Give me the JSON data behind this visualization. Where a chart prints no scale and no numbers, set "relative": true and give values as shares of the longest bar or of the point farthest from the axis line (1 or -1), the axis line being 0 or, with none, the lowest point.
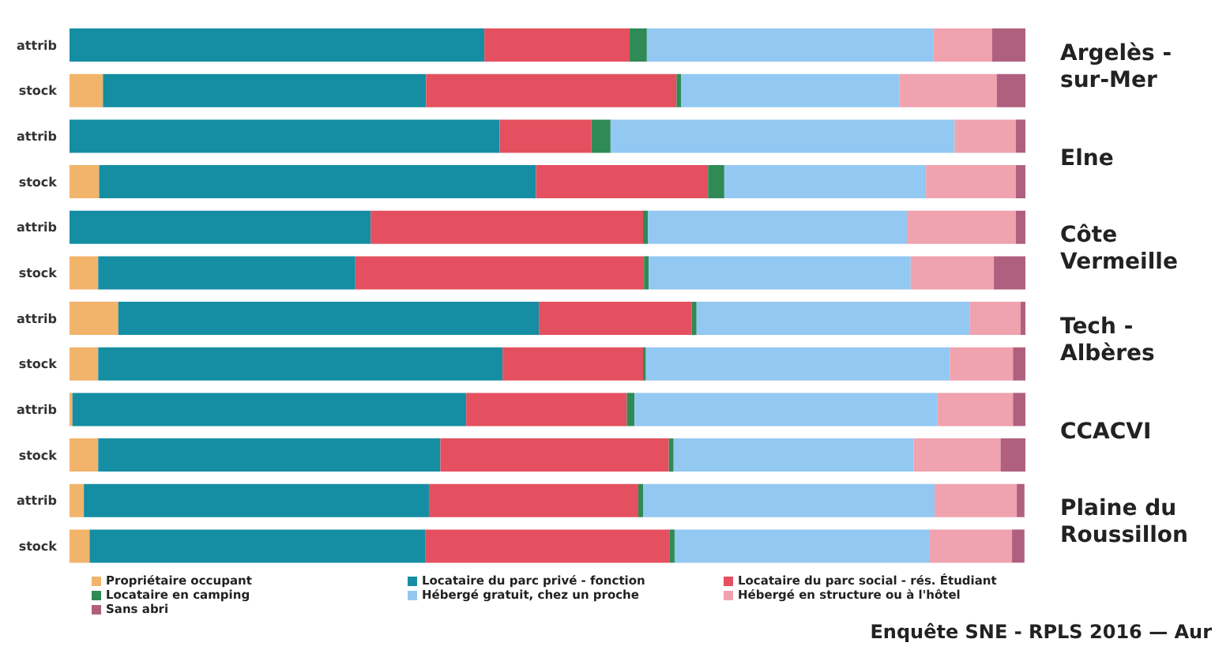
{
  "chart_data": {
    "type": "bar",
    "orientation": "horizontal",
    "stacked": true,
    "relative": true,
    "legend": "bottom",
    "categories": [
      "attrib",
      "stock",
      "attrib",
      "stock",
      "attrib",
      "stock",
      "attrib",
      "stock",
      "attrib",
      "stock",
      "attrib",
      "stock"
    ],
    "series": [
      {
        "name": "Propriétaire occupant",
        "color": "#f2b36b",
        "values": [
          0,
          0.035,
          0,
          0.031,
          0,
          0.03,
          0.051,
          0.03,
          0.003,
          0.03,
          0.015,
          0.021
        ]
      },
      {
        "name": "Locataire du parc privé - fonction",
        "color": "#158ea3",
        "values": [
          0.434,
          0.338,
          0.45,
          0.457,
          0.315,
          0.269,
          0.44,
          0.423,
          0.412,
          0.358,
          0.361,
          0.351
        ]
      },
      {
        "name": "Locataire du parc social - rés. Étudiant",
        "color": "#e4505f",
        "values": [
          0.152,
          0.262,
          0.096,
          0.18,
          0.285,
          0.302,
          0.16,
          0.147,
          0.168,
          0.239,
          0.219,
          0.256
        ]
      },
      {
        "name": "Locataire en camping",
        "color": "#2f8a55",
        "values": [
          0.018,
          0.005,
          0.02,
          0.017,
          0.005,
          0.005,
          0.005,
          0.003,
          0.008,
          0.005,
          0.005,
          0.005
        ]
      },
      {
        "name": "Hébergé gratuit, chez un proche",
        "color": "#93c8f2",
        "values": [
          0.3,
          0.228,
          0.36,
          0.211,
          0.271,
          0.274,
          0.286,
          0.318,
          0.317,
          0.251,
          0.305,
          0.267
        ]
      },
      {
        "name": "Hébergé en structure ou à l'hôtel",
        "color": "#f0a2ae",
        "values": [
          0.061,
          0.102,
          0.064,
          0.094,
          0.114,
          0.087,
          0.053,
          0.066,
          0.079,
          0.091,
          0.086,
          0.086
        ]
      },
      {
        "name": "Sans abri",
        "color": "#b0607e",
        "values": [
          0.035,
          0.03,
          0.01,
          0.01,
          0.01,
          0.033,
          0.005,
          0.013,
          0.013,
          0.026,
          0.008,
          0.013
        ]
      }
    ],
    "annotations": [
      "Argelès -sur-Mer",
      "Elne",
      "Côte Vermeille",
      "Tech - Albères",
      "CCACVI",
      "Plaine du Roussillon",
      "Enquête SNE - RPLS 2016 — Aur"
    ]
  }
}
